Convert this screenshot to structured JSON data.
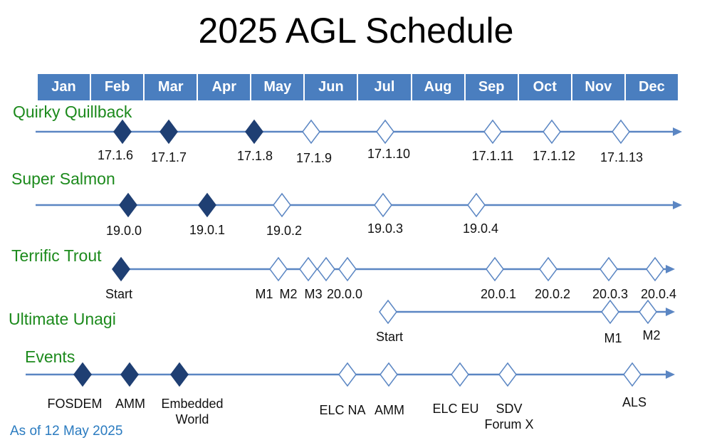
{
  "title": "2025 AGL Schedule",
  "months": [
    "Jan",
    "Feb",
    "Mar",
    "Apr",
    "May",
    "Jun",
    "Jul",
    "Aug",
    "Sep",
    "Oct",
    "Nov",
    "Dec"
  ],
  "colors": {
    "month_bar": "#4a7ebf",
    "line": "#5b86c3",
    "filled": "#1f3f73",
    "track_label": "#1c8a1c",
    "as_of": "#2a7bc0"
  },
  "tracks": [
    {
      "name": "Quirky Quillback",
      "milestones": [
        {
          "label": "17.1.6",
          "filled": true
        },
        {
          "label": "17.1.7",
          "filled": true
        },
        {
          "label": "17.1.8",
          "filled": true
        },
        {
          "label": "17.1.9",
          "filled": false
        },
        {
          "label": "17.1.10",
          "filled": false
        },
        {
          "label": "17.1.11",
          "filled": false
        },
        {
          "label": "17.1.12",
          "filled": false
        },
        {
          "label": "17.1.13",
          "filled": false
        }
      ]
    },
    {
      "name": "Super Salmon",
      "milestones": [
        {
          "label": "19.0.0",
          "filled": true
        },
        {
          "label": "19.0.1",
          "filled": true
        },
        {
          "label": "19.0.2",
          "filled": false
        },
        {
          "label": "19.0.3",
          "filled": false
        },
        {
          "label": "19.0.4",
          "filled": false
        }
      ]
    },
    {
      "name": "Terrific Trout",
      "milestones": [
        {
          "label": "Start",
          "filled": true
        },
        {
          "label": "M1",
          "filled": false
        },
        {
          "label": "M2",
          "filled": false
        },
        {
          "label": "M3",
          "filled": false
        },
        {
          "label": "20.0.0",
          "filled": false
        },
        {
          "label": "20.0.1",
          "filled": false
        },
        {
          "label": "20.0.2",
          "filled": false
        },
        {
          "label": "20.0.3",
          "filled": false
        },
        {
          "label": "20.0.4",
          "filled": false
        }
      ]
    },
    {
      "name": "Ultimate Unagi",
      "milestones": [
        {
          "label": "Start",
          "filled": false
        },
        {
          "label": "M1",
          "filled": false
        },
        {
          "label": "M2",
          "filled": false
        }
      ]
    },
    {
      "name": "Events",
      "milestones": [
        {
          "label": "FOSDEM",
          "filled": true
        },
        {
          "label": "AMM",
          "filled": true
        },
        {
          "label": "Embedded World",
          "filled": true
        },
        {
          "label": "ELC NA",
          "filled": false
        },
        {
          "label": "AMM",
          "filled": false
        },
        {
          "label": "ELC EU",
          "filled": false
        },
        {
          "label": "SDV Forum X",
          "filled": false
        },
        {
          "label": "ALS",
          "filled": false
        }
      ]
    }
  ],
  "as_of": "As of 12 May 2025"
}
